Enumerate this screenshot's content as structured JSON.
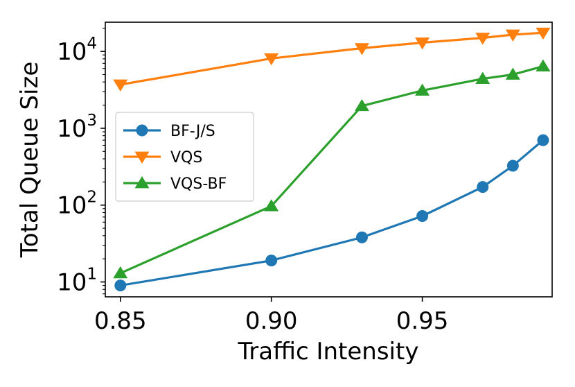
{
  "chart_data": {
    "type": "line",
    "title": "",
    "xlabel": "Traffic Intensity",
    "ylabel": "Total Queue Size",
    "yscale": "log",
    "xlim": [
      0.845,
      0.993
    ],
    "ylim": [
      6.4,
      24000
    ],
    "x": [
      0.85,
      0.9,
      0.93,
      0.95,
      0.97,
      0.98,
      0.99
    ],
    "xticks": [
      {
        "value": 0.85,
        "label": "0.85"
      },
      {
        "value": 0.9,
        "label": "0.90"
      },
      {
        "value": 0.95,
        "label": "0.95"
      }
    ],
    "yticks": [
      {
        "value": 10,
        "base": "10",
        "exp": "1"
      },
      {
        "value": 100,
        "base": "10",
        "exp": "2"
      },
      {
        "value": 1000,
        "base": "10",
        "exp": "3"
      },
      {
        "value": 10000,
        "base": "10",
        "exp": "4"
      }
    ],
    "series": [
      {
        "name": "BF-J/S",
        "color": "#1f77b4",
        "marker": "circle",
        "values": [
          9,
          19,
          38,
          72,
          172,
          325,
          700
        ]
      },
      {
        "name": "VQS",
        "color": "#ff7f0e",
        "marker": "triangle-down",
        "values": [
          3700,
          8100,
          11000,
          13000,
          15000,
          16500,
          17500
        ]
      },
      {
        "name": "VQS-BF",
        "color": "#2ca02c",
        "marker": "triangle-up",
        "values": [
          13,
          97,
          1950,
          3100,
          4400,
          5000,
          6400
        ]
      }
    ],
    "legend": "center-left",
    "grid": false
  }
}
